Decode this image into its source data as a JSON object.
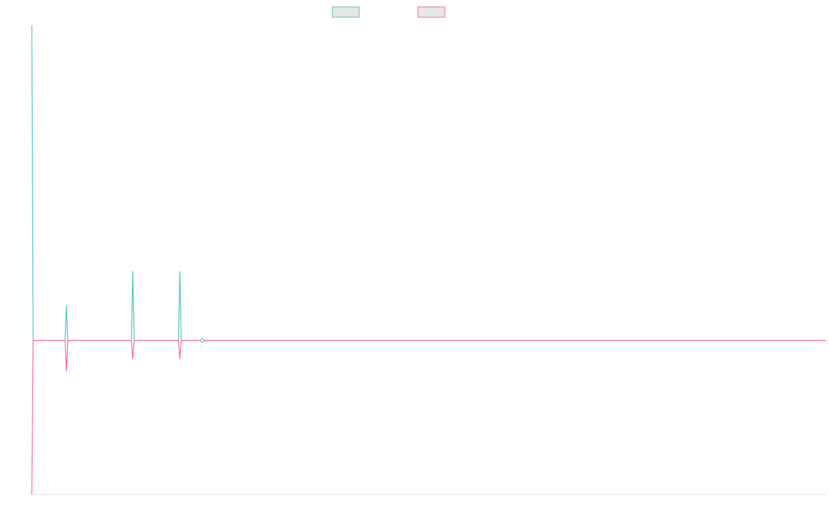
{
  "chart_data": {
    "type": "line",
    "title": "",
    "xlabel": "",
    "ylabel": "",
    "x": [
      0,
      1,
      2,
      3,
      4,
      5,
      6,
      7,
      8,
      9,
      10,
      11,
      12,
      13,
      14,
      15,
      16,
      17,
      18,
      19,
      20,
      21,
      22,
      23,
      24,
      25,
      26,
      27,
      28,
      29,
      30,
      31,
      32,
      33,
      34,
      35,
      36,
      37,
      38,
      39,
      40,
      41,
      42,
      43,
      44,
      45,
      46,
      47,
      48,
      49,
      50,
      51,
      52,
      53,
      54,
      55,
      56,
      57,
      58,
      59,
      60,
      61,
      62,
      63,
      64,
      65,
      66,
      67,
      68,
      69,
      70,
      71,
      72,
      73,
      74,
      75,
      76,
      77,
      78,
      79,
      80,
      81,
      82,
      83,
      84,
      85,
      86,
      87,
      88,
      89,
      90,
      91,
      92,
      93,
      94,
      95,
      96,
      97,
      98,
      99,
      100,
      101,
      102,
      103,
      104,
      105,
      106,
      107,
      108,
      109,
      110,
      111,
      112,
      113,
      114,
      115,
      116,
      117,
      118,
      119,
      120,
      121,
      122,
      123,
      124,
      125,
      126,
      127,
      128,
      129,
      130,
      131,
      132,
      133,
      134,
      135,
      136,
      137,
      138,
      139,
      140,
      141,
      142,
      143,
      144,
      145,
      146,
      147,
      148,
      149,
      150,
      151,
      152,
      153,
      154,
      155,
      156,
      157,
      158,
      159,
      160,
      161,
      162,
      163,
      164,
      165,
      166,
      167,
      168,
      169,
      170,
      171,
      172,
      173,
      174,
      175,
      176,
      177,
      178,
      179,
      180,
      181,
      182,
      183,
      184,
      185,
      186,
      187,
      188,
      189,
      190,
      191,
      192,
      193,
      194,
      195,
      196,
      197,
      198,
      199,
      200,
      201,
      202,
      203,
      204,
      205,
      206,
      207,
      208,
      209,
      210,
      211,
      212,
      213,
      214,
      215,
      216,
      217,
      218,
      219,
      220,
      221,
      222,
      223,
      224,
      225,
      226,
      227,
      228,
      229,
      230,
      231,
      232,
      233,
      234,
      235,
      236,
      237,
      238,
      239,
      240,
      241,
      242,
      243,
      244,
      245,
      246,
      247,
      248,
      249,
      250,
      251,
      252,
      253,
      254,
      255,
      256,
      257,
      258,
      259,
      260,
      261,
      262,
      263,
      264,
      265,
      266,
      267,
      268,
      269,
      270,
      271,
      272,
      273,
      274,
      275,
      276,
      277,
      278,
      279,
      280,
      281,
      282,
      283,
      284,
      285,
      286,
      287,
      288,
      289,
      290,
      291,
      292,
      293,
      294,
      295,
      296,
      297,
      298,
      299,
      300,
      301,
      302,
      303,
      304,
      305,
      306,
      307,
      308,
      309,
      310,
      311,
      312,
      313,
      314,
      315,
      316,
      317,
      318,
      319,
      320,
      321,
      322,
      323,
      324,
      325,
      326,
      327,
      328,
      329,
      330,
      331,
      332,
      333,
      334,
      335,
      336,
      337,
      338,
      339,
      340,
      341,
      342,
      343,
      344,
      345,
      346,
      347,
      348,
      349,
      350,
      351,
      352,
      353,
      354,
      355,
      356,
      357,
      358,
      359,
      360,
      361,
      362,
      363,
      364,
      365,
      366,
      367,
      368,
      369,
      370,
      371,
      372,
      373,
      374,
      375,
      376,
      377,
      378,
      379,
      380,
      381,
      382,
      383,
      384,
      385,
      386,
      387,
      388,
      389,
      390,
      391,
      392,
      393,
      394,
      395,
      396,
      397,
      398,
      399,
      400,
      401,
      402,
      403,
      404,
      405,
      406,
      407,
      408,
      409,
      410,
      411,
      412,
      413,
      414,
      415,
      416,
      417,
      418,
      419,
      420,
      421,
      422,
      423,
      424,
      425,
      426,
      427,
      428,
      429,
      430,
      431,
      432,
      433,
      434,
      435,
      436,
      437,
      438,
      439,
      440,
      441,
      442,
      443,
      444,
      445,
      446,
      447,
      448,
      449,
      450,
      451,
      452,
      453,
      454,
      455,
      456,
      457,
      458,
      459,
      460,
      461,
      462,
      463,
      464,
      465,
      466,
      467,
      468,
      469,
      470,
      471,
      472,
      473,
      474,
      475,
      476,
      477,
      478,
      479,
      480,
      481,
      482,
      483,
      484,
      485,
      486,
      487,
      488,
      489,
      490,
      491,
      492,
      493,
      494,
      495,
      496,
      497,
      498,
      499,
      500,
      501,
      502,
      503,
      504,
      505,
      506,
      507,
      508,
      509,
      510,
      511,
      512,
      513,
      514,
      515,
      516,
      517,
      518,
      519,
      520,
      521,
      522,
      523,
      524,
      525,
      526,
      527,
      528,
      529,
      530,
      531,
      532,
      533,
      534,
      535,
      536,
      537,
      538,
      539,
      540,
      541,
      542,
      543,
      544,
      545,
      546,
      547,
      548,
      549,
      550,
      551,
      552,
      553,
      554,
      555,
      556,
      557,
      558,
      559,
      560,
      561,
      562,
      563,
      564,
      565,
      566,
      567,
      568,
      569,
      570,
      571,
      572,
      573,
      574
    ],
    "series": [
      {
        "color": "#4bc0c0",
        "points": [
          [
            0,
            1
          ],
          [
            1,
            0
          ],
          [
            24,
            0
          ],
          [
            25,
            0.11
          ],
          [
            26,
            0
          ],
          [
            72,
            0
          ],
          [
            73,
            0.22
          ],
          [
            74,
            0
          ],
          [
            106,
            0
          ],
          [
            107,
            0.22
          ],
          [
            108,
            0
          ],
          [
            574,
            0
          ]
        ]
      },
      {
        "color": "#ff6384",
        "points": [
          [
            0,
            -0.5
          ],
          [
            1,
            0
          ],
          [
            24,
            0
          ],
          [
            25,
            -0.1
          ],
          [
            26,
            0
          ],
          [
            72,
            0
          ],
          [
            73,
            -0.06
          ],
          [
            74,
            0
          ],
          [
            106,
            0
          ],
          [
            107,
            -0.06
          ],
          [
            108,
            0
          ],
          [
            574,
            0
          ]
        ]
      }
    ],
    "markers": [
      {
        "x": 123,
        "y": 0
      }
    ],
    "xlim": [
      0,
      574
    ],
    "ylim": [
      -0.5,
      1
    ],
    "legend": {
      "placement": "top-center"
    },
    "grid": false
  },
  "legend": {
    "items": [
      {
        "label": "",
        "color": "#4bc0c0"
      },
      {
        "label": "",
        "color": "#ff6384"
      }
    ]
  }
}
